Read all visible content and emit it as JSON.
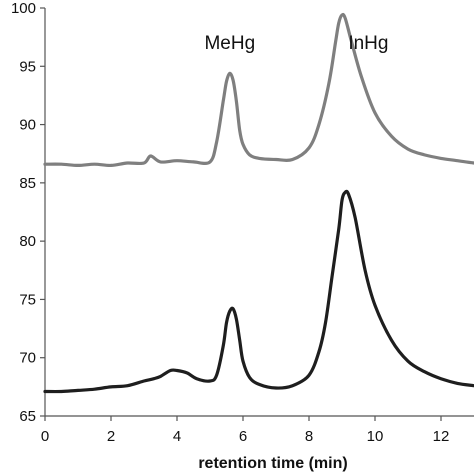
{
  "chart_data": {
    "type": "line",
    "title": "",
    "xlabel": "retention time (min)",
    "ylabel": "",
    "xlim": [
      0,
      13
    ],
    "ylim": [
      65,
      100
    ],
    "x_ticks": [
      0,
      2,
      4,
      6,
      8,
      10,
      12
    ],
    "y_ticks": [
      65,
      70,
      75,
      80,
      85,
      90,
      95,
      100
    ],
    "x_tick_labels": [
      "0",
      "2",
      "4",
      "6",
      "8",
      "10",
      "12"
    ],
    "y_tick_labels": [
      "65",
      "70",
      "75",
      "80",
      "85",
      "90",
      "95",
      "100"
    ],
    "grid": false,
    "legend": "none",
    "annotations": [
      {
        "text": "MeHg",
        "x": 5.6,
        "y": 96.5
      },
      {
        "text": "InHg",
        "x": 9.8,
        "y": 96.5
      }
    ],
    "series": [
      {
        "color": "#7f7f7f",
        "x": [
          0,
          0.5,
          1,
          1.5,
          2,
          2.5,
          3,
          3.2,
          3.5,
          4,
          4.5,
          5,
          5.2,
          5.4,
          5.5,
          5.6,
          5.7,
          5.8,
          5.9,
          6.0,
          6.2,
          6.5,
          7.0,
          7.5,
          8.0,
          8.3,
          8.6,
          8.8,
          8.9,
          9.0,
          9.1,
          9.3,
          9.6,
          10.0,
          10.5,
          11.0,
          11.5,
          12.0,
          12.5,
          13.0
        ],
        "y": [
          86.6,
          86.6,
          86.5,
          86.6,
          86.5,
          86.7,
          86.7,
          87.3,
          86.8,
          86.9,
          86.8,
          86.8,
          88.5,
          92.0,
          93.7,
          94.4,
          93.8,
          92.0,
          89.5,
          88.3,
          87.4,
          87.1,
          87.0,
          87.0,
          88.0,
          90.0,
          93.5,
          97.0,
          98.7,
          99.4,
          99.1,
          97.0,
          94.0,
          91.0,
          89.0,
          87.9,
          87.4,
          87.1,
          86.9,
          86.7
        ]
      },
      {
        "color": "#1e1e1e",
        "x": [
          0,
          0.5,
          1,
          1.5,
          2,
          2.5,
          3,
          3.3,
          3.5,
          3.8,
          4.0,
          4.3,
          4.6,
          5.0,
          5.2,
          5.4,
          5.5,
          5.6,
          5.7,
          5.8,
          5.9,
          6.0,
          6.2,
          6.5,
          7.0,
          7.5,
          8.0,
          8.3,
          8.5,
          8.7,
          8.9,
          9.0,
          9.1,
          9.2,
          9.4,
          9.7,
          10.0,
          10.5,
          11.0,
          11.5,
          12.0,
          12.5,
          13.0
        ],
        "y": [
          67.1,
          67.1,
          67.2,
          67.3,
          67.5,
          67.6,
          68.0,
          68.2,
          68.4,
          68.9,
          68.9,
          68.7,
          68.2,
          68.0,
          68.5,
          71.0,
          73.0,
          74.0,
          74.2,
          73.3,
          71.5,
          69.7,
          68.3,
          67.7,
          67.4,
          67.6,
          68.5,
          70.5,
          73.0,
          77.0,
          81.0,
          83.5,
          84.2,
          84.0,
          82.0,
          77.5,
          74.5,
          71.5,
          69.7,
          68.8,
          68.2,
          67.8,
          67.6
        ]
      }
    ]
  }
}
